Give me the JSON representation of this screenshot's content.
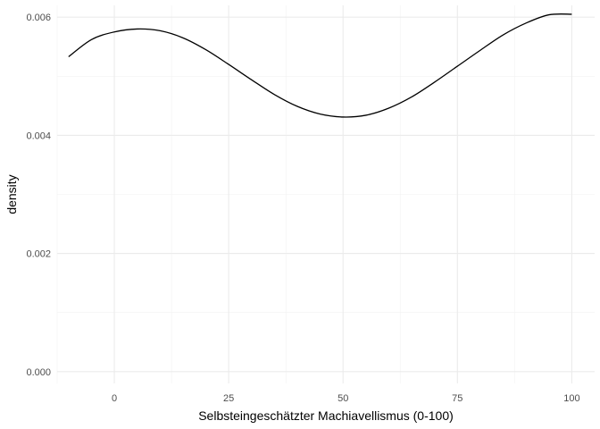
{
  "chart_data": {
    "type": "line",
    "xlabel": "Selbsteingeschätzter Machiavellismus (0-100)",
    "ylabel": "density",
    "xlim": [
      -12.5,
      105
    ],
    "ylim": [
      -0.0002,
      0.0062
    ],
    "x_ticks": [
      0,
      25,
      50,
      75,
      100
    ],
    "x_tick_labels": [
      "0",
      "25",
      "50",
      "75",
      "100"
    ],
    "y_ticks": [
      0.0,
      0.002,
      0.004,
      0.006
    ],
    "y_tick_labels": [
      "0.000",
      "0.002",
      "0.004",
      "0.006"
    ],
    "grid": true,
    "series": [
      {
        "color": "#000000",
        "x": [
          -10,
          -5,
          0,
          5,
          10,
          15,
          20,
          25,
          30,
          35,
          40,
          45,
          50,
          55,
          60,
          65,
          70,
          75,
          80,
          85,
          90,
          95,
          100
        ],
        "y": [
          0.00533,
          0.00562,
          0.00575,
          0.0058,
          0.00577,
          0.00565,
          0.00545,
          0.0052,
          0.00494,
          0.00469,
          0.00449,
          0.00436,
          0.00431,
          0.00434,
          0.00446,
          0.00465,
          0.0049,
          0.00517,
          0.00544,
          0.0057,
          0.0059,
          0.00604,
          0.00605
        ]
      }
    ]
  }
}
